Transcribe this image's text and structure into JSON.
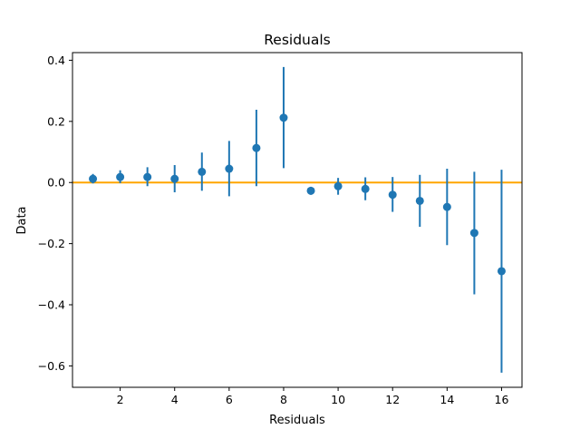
{
  "chart_data": {
    "type": "scatter",
    "title": "Residuals",
    "xlabel": "Residuals",
    "ylabel": "Data",
    "xlim": [
      0.25,
      16.75
    ],
    "ylim": [
      -0.67,
      0.425
    ],
    "xticks": [
      2,
      4,
      6,
      8,
      10,
      12,
      14,
      16
    ],
    "xtick_labels": [
      "2",
      "4",
      "6",
      "8",
      "10",
      "12",
      "14",
      "16"
    ],
    "yticks": [
      -0.6,
      -0.4,
      -0.2,
      0.0,
      0.2,
      0.4
    ],
    "ytick_labels": [
      "−0.6",
      "−0.4",
      "−0.2",
      "0.0",
      "0.2",
      "0.4"
    ],
    "grid": false,
    "reference_line": {
      "y": 0.0,
      "color": "#ffa500"
    },
    "series": [
      {
        "color": "#1f77b4",
        "x": [
          1,
          2,
          3,
          4,
          5,
          6,
          7,
          8,
          9,
          10,
          11,
          12,
          13,
          14,
          15,
          16
        ],
        "y": [
          0.012,
          0.018,
          0.018,
          0.012,
          0.035,
          0.045,
          0.113,
          0.212,
          -0.027,
          -0.012,
          -0.021,
          -0.04,
          -0.06,
          -0.08,
          -0.165,
          -0.29
        ],
        "yerr_low": [
          -0.003,
          -0.002,
          -0.012,
          -0.032,
          -0.027,
          -0.045,
          -0.012,
          0.047,
          -0.04,
          -0.04,
          -0.058,
          -0.096,
          -0.145,
          -0.205,
          -0.366,
          -0.622
        ],
        "yerr_high": [
          0.028,
          0.04,
          0.05,
          0.057,
          0.098,
          0.136,
          0.238,
          0.378,
          -0.014,
          0.015,
          0.017,
          0.018,
          0.025,
          0.045,
          0.035,
          0.042
        ]
      }
    ]
  }
}
